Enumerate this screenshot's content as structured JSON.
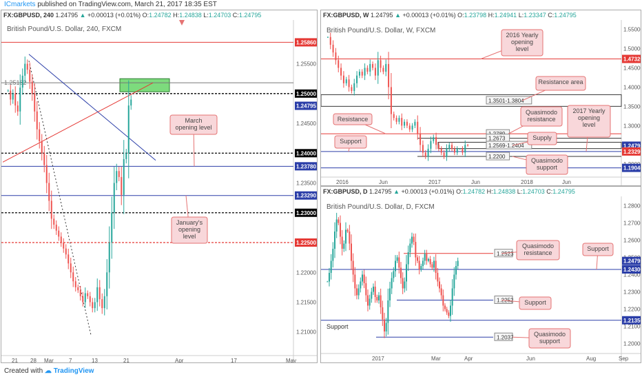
{
  "header": {
    "publisher": "ICmarkets",
    "text": " published on TradingView.com, March 21, 2017 18:35 EST"
  },
  "footer": {
    "created_with": "Created with",
    "brand": "TradingView"
  },
  "colors": {
    "up": "#26a69a",
    "down": "#ef5350",
    "level_red": "#e53935",
    "level_blue": "#2b3ea8",
    "callout_bg": "#f8d7da",
    "callout_border": "#e57373",
    "green_zone": "#7ddb7d",
    "axis_blue_label": "#1a237e"
  },
  "chart_data": [
    {
      "id": "h4",
      "type": "candlestick",
      "header": {
        "symbol": "FX:GBPUSD, 240",
        "price": "1.24795",
        "change": "+0.00013 (+0.01%)",
        "o": "1.24782",
        "h": "1.24838",
        "l": "1.24703",
        "c": "1.24795"
      },
      "title": "British Pound/U.S. Dollar, 240, FXCM",
      "ylim": [
        1.2065,
        1.2605
      ],
      "y_ticks": [
        "1.25500",
        "1.25000",
        "1.24500",
        "1.24000",
        "1.23500",
        "1.23000",
        "1.22500",
        "1.22000",
        "1.21500",
        "1.21000"
      ],
      "x_ticks": [
        "21",
        "28",
        "Mar",
        "7",
        "13",
        "21",
        "Apr",
        "17",
        "May"
      ],
      "levels": [
        {
          "label": "1.25860",
          "value": 1.2586,
          "style": "solid",
          "color": "red"
        },
        {
          "label": "1.25000",
          "value": 1.25,
          "style": "dashed",
          "color": "black"
        },
        {
          "label": "1.24795",
          "value": 1.24795,
          "style": "none",
          "color": "blue"
        },
        {
          "label": "1.24000",
          "value": 1.24,
          "style": "dashed",
          "color": "black"
        },
        {
          "label": "1.23780",
          "value": 1.2378,
          "style": "solid",
          "color": "blue"
        },
        {
          "label": "1.23290",
          "value": 1.2329,
          "style": "solid",
          "color": "blue"
        },
        {
          "label": "1.23000",
          "value": 1.23,
          "style": "dashed",
          "color": "black"
        },
        {
          "label": "1.22500",
          "value": 1.225,
          "style": "dashed",
          "color": "red"
        }
      ],
      "level_1_25182": "1.25182",
      "series": [
        1.2505,
        1.249,
        1.25,
        1.248,
        1.247,
        1.251,
        1.253,
        1.255,
        1.254,
        1.252,
        1.25,
        1.247,
        1.244,
        1.242,
        1.24,
        1.238,
        1.235,
        1.232,
        1.229,
        1.228,
        1.227,
        1.226,
        1.225,
        1.224,
        1.223,
        1.2215,
        1.22,
        1.2185,
        1.2175,
        1.217,
        1.216,
        1.215,
        1.2165,
        1.216,
        1.215,
        1.214,
        1.215,
        1.2175,
        1.2155,
        1.214,
        1.216,
        1.22,
        1.225,
        1.23,
        1.235,
        1.237,
        1.236,
        1.233,
        1.239,
        1.24,
        1.248,
        1.249
      ],
      "annotations": [
        "March opening level",
        "January's opening level"
      ]
    },
    {
      "id": "weekly",
      "type": "candlestick",
      "header": {
        "symbol": "FX:GBPUSD, W",
        "price": "1.24795",
        "change": "+0.00013 (+0.01%)",
        "o": "1.23798",
        "h": "1.24941",
        "l": "1.23347",
        "c": "1.24795"
      },
      "title": "British Pound/U.S. Dollar, W, FXCM",
      "ylim": [
        1.17,
        1.56
      ],
      "y_ticks": [
        "1.55000",
        "1.50000",
        "1.45000",
        "1.40000",
        "1.35000",
        "1.30000",
        "1.25000",
        "1.20000"
      ],
      "x_ticks": [
        "2016",
        "Jun",
        "2017",
        "Jun",
        "2018",
        "Jun"
      ],
      "axis_labels": [
        "1.47320",
        "1.24795",
        "1.23290",
        "1.19040"
      ],
      "boxes": [
        "1.3501-1.3804",
        "1.2789",
        "1.2673",
        "1.2569-1.2404",
        "1.2200"
      ],
      "series": [
        1.53,
        1.51,
        1.49,
        1.47,
        1.45,
        1.43,
        1.41,
        1.42,
        1.4,
        1.39,
        1.41,
        1.43,
        1.44,
        1.43,
        1.45,
        1.44,
        1.46,
        1.45,
        1.43,
        1.47,
        1.45,
        1.44,
        1.46,
        1.4,
        1.33,
        1.32,
        1.31,
        1.32,
        1.3,
        1.31,
        1.3,
        1.29,
        1.3,
        1.31,
        1.28,
        1.25,
        1.23,
        1.22,
        1.24,
        1.26,
        1.27,
        1.25,
        1.24,
        1.23,
        1.22,
        1.24,
        1.25,
        1.24,
        1.23,
        1.24,
        1.24,
        1.23,
        1.25,
        1.248
      ],
      "annotations": [
        "2016 Yearly opening level",
        "Resistance area",
        "Quasimodo resistance",
        "2017 Yearly opening level",
        "Resistance",
        "Supply",
        "Support",
        "Quasimodo support"
      ]
    },
    {
      "id": "daily",
      "type": "candlestick",
      "header": {
        "symbol": "FX:GBPUSD, D",
        "price": "1.24795",
        "change": "+0.00013 (+0.01%)",
        "o": "1.24782",
        "h": "1.24838",
        "l": "1.24703",
        "c": "1.24795"
      },
      "title": "British Pound/U.S. Dollar, D, FXCM",
      "ylim": [
        1.195,
        1.283
      ],
      "y_ticks": [
        "1.28000",
        "1.27000",
        "1.26000",
        "1.25000",
        "1.24000",
        "1.23000",
        "1.22000",
        "1.21000",
        "1.20000"
      ],
      "x_ticks": [
        "2017",
        "Mar",
        "Apr",
        "Jun",
        "Aug",
        "Sep"
      ],
      "axis_labels": [
        "1.24795",
        "1.24300",
        "1.21350"
      ],
      "boxes": [
        "1.2523",
        "1.2252",
        "1.2037"
      ],
      "series": [
        1.236,
        1.241,
        1.248,
        1.255,
        1.265,
        1.272,
        1.27,
        1.262,
        1.255,
        1.258,
        1.266,
        1.265,
        1.258,
        1.248,
        1.24,
        1.232,
        1.228,
        1.232,
        1.236,
        1.24,
        1.235,
        1.228,
        1.222,
        1.226,
        1.23,
        1.233,
        1.227,
        1.225,
        1.228,
        1.221,
        1.214,
        1.207,
        1.212,
        1.225,
        1.232,
        1.238,
        1.242,
        1.248,
        1.25,
        1.244,
        1.238,
        1.232,
        1.236,
        1.246,
        1.253,
        1.258,
        1.262,
        1.259,
        1.25,
        1.248,
        1.243,
        1.245,
        1.248,
        1.252,
        1.248,
        1.249,
        1.246,
        1.244,
        1.248,
        1.241,
        1.236,
        1.232,
        1.228,
        1.222,
        1.22,
        1.218,
        1.216,
        1.222,
        1.232,
        1.24,
        1.245,
        1.248
      ],
      "annotations": [
        "Quasimodo resistance",
        "Support",
        "Support",
        "Support",
        "Quasimodo support"
      ]
    }
  ]
}
